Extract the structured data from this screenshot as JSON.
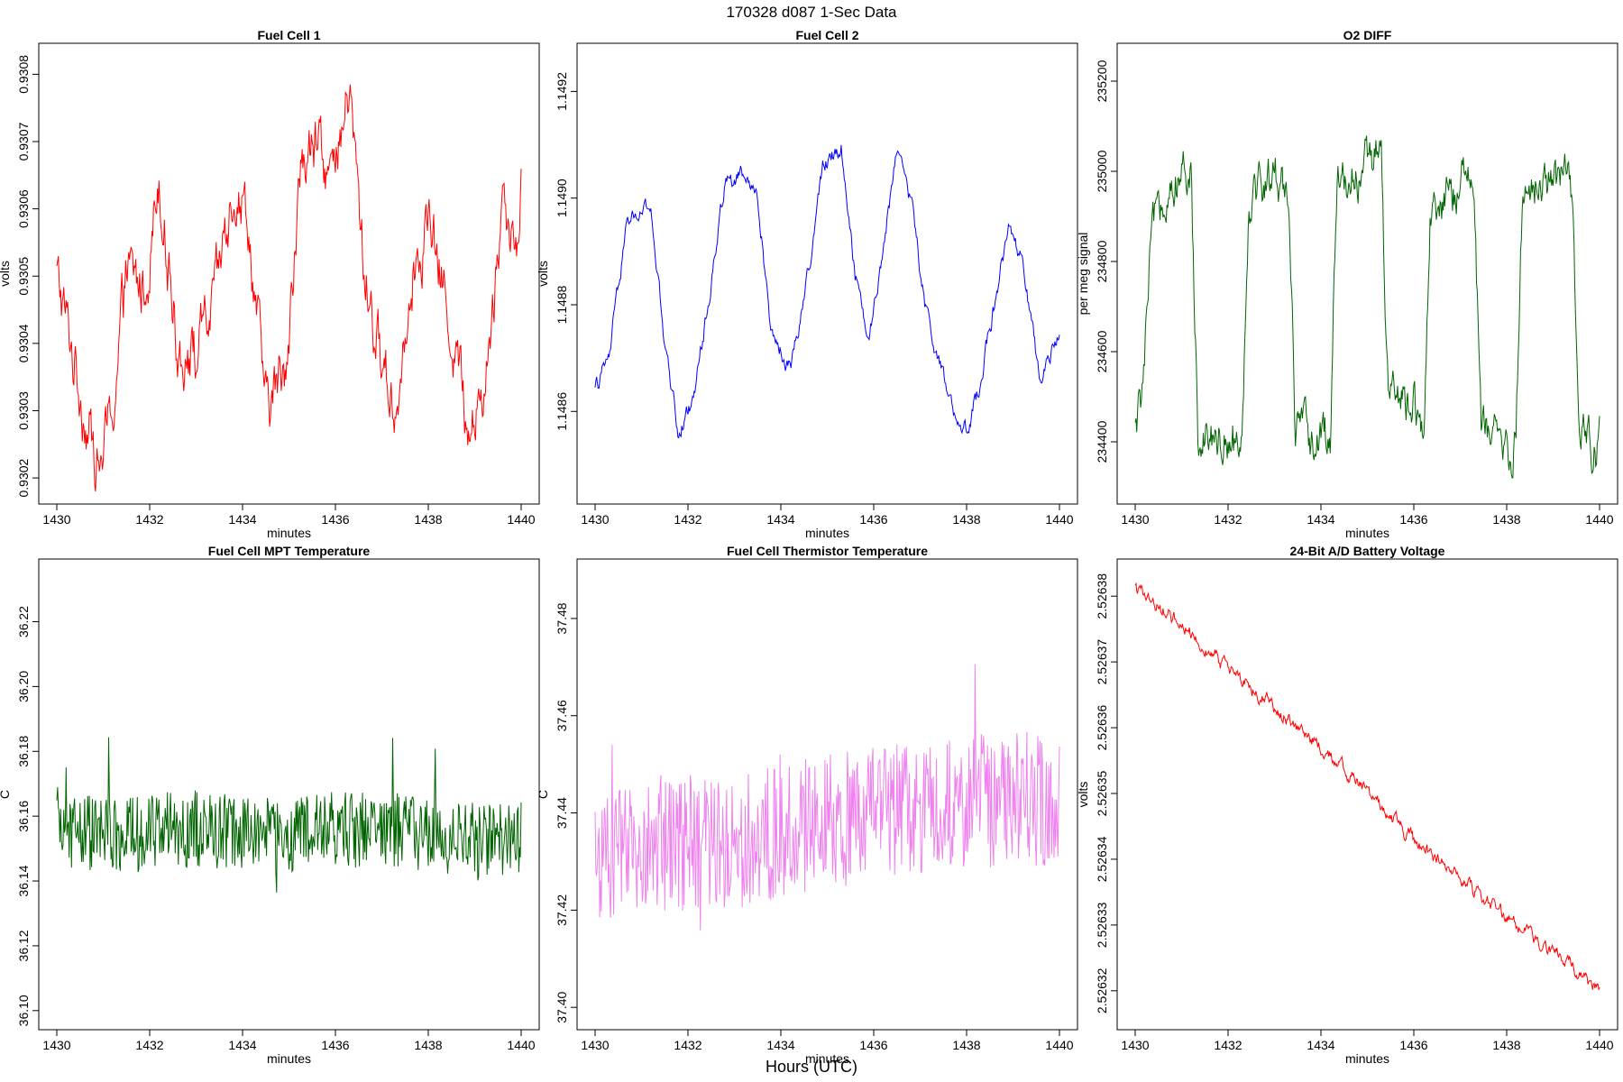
{
  "page": {
    "title": "170328   d087   1-Sec Data",
    "outer_xlabel": "Hours (UTC)"
  },
  "chart_data": [
    {
      "type": "line",
      "title": "Fuel Cell 1",
      "xlabel": "minutes",
      "ylabel": "volts",
      "color": "#ff0000",
      "xlim": [
        1430,
        1440
      ],
      "ylim": [
        0.93018,
        0.93083
      ],
      "xticks": [
        1430,
        1432,
        1434,
        1436,
        1438,
        1440
      ],
      "yticks": [
        0.9302,
        0.9303,
        0.9304,
        0.9305,
        0.9306,
        0.9307,
        0.9308
      ],
      "ytick_labels": [
        "0.9302",
        "0.9303",
        "0.9304",
        "0.9305",
        "0.9306",
        "0.9307",
        "0.9308"
      ],
      "series": [
        {
          "x": [
            1430,
            1430.3,
            1430.6,
            1430.9,
            1431.2,
            1431.5,
            1431.9,
            1432.2,
            1432.6,
            1433.0,
            1433.4,
            1433.8,
            1434.1,
            1434.5,
            1434.9,
            1435.3,
            1435.7,
            1436.0,
            1436.3,
            1436.6,
            1436.9,
            1437.3,
            1437.6,
            1438.0,
            1438.4,
            1438.8,
            1439.0,
            1439.3,
            1439.6,
            1439.9,
            1440
          ],
          "y": [
            0.9305,
            0.9304,
            0.9303,
            0.93021,
            0.9303,
            0.9305,
            0.93048,
            0.93066,
            0.9304,
            0.93038,
            0.93046,
            0.93064,
            0.9306,
            0.9303,
            0.93036,
            0.93068,
            0.93068,
            0.93064,
            0.93078,
            0.93052,
            0.9304,
            0.9303,
            0.9305,
            0.93058,
            0.93046,
            0.9303,
            0.93028,
            0.93038,
            0.93062,
            0.93054,
            0.93068
          ]
        }
      ]
    },
    {
      "type": "line",
      "title": "Fuel Cell 2",
      "xlabel": "minutes",
      "ylabel": "volts",
      "color": "#0000ff",
      "xlim": [
        1430,
        1440
      ],
      "ylim": [
        1.14845,
        1.14927
      ],
      "xticks": [
        1430,
        1432,
        1434,
        1436,
        1438,
        1440
      ],
      "yticks": [
        1.1486,
        1.1488,
        1.149,
        1.1492
      ],
      "ytick_labels": [
        "1.1486",
        "1.1488",
        "1.1490",
        "1.1492"
      ],
      "series": [
        {
          "x": [
            1430,
            1430.3,
            1430.7,
            1431.2,
            1431.5,
            1431.8,
            1432.1,
            1432.5,
            1432.8,
            1433.2,
            1433.5,
            1433.8,
            1434.2,
            1434.6,
            1434.9,
            1435.3,
            1435.6,
            1435.9,
            1436.2,
            1436.5,
            1436.8,
            1437.1,
            1437.5,
            1437.9,
            1438.2,
            1438.6,
            1438.9,
            1439.2,
            1439.6,
            1440
          ],
          "y": [
            1.14864,
            1.1487,
            1.14896,
            1.14898,
            1.14872,
            1.14856,
            1.14862,
            1.14884,
            1.14904,
            1.14904,
            1.149,
            1.14875,
            1.14868,
            1.14886,
            1.14906,
            1.1491,
            1.14886,
            1.14874,
            1.1489,
            1.1491,
            1.149,
            1.1488,
            1.14866,
            1.14854,
            1.14862,
            1.1488,
            1.14894,
            1.14888,
            1.14864,
            1.14876
          ]
        }
      ]
    },
    {
      "type": "line",
      "title": "O2 DIFF",
      "xlabel": "minutes",
      "ylabel": "per meg signal",
      "color": "#006400",
      "xlim": [
        1430,
        1440
      ],
      "ylim": [
        234290,
        235260
      ],
      "xticks": [
        1430,
        1432,
        1434,
        1436,
        1438,
        1440
      ],
      "yticks": [
        234400,
        234600,
        234800,
        235000,
        235200
      ],
      "ytick_labels": [
        "234400",
        "234600",
        "234800",
        "235000",
        "235200"
      ],
      "series": [
        {
          "x": [
            1430,
            1430.15,
            1430.35,
            1430.7,
            1431.2,
            1431.35,
            1431.9,
            1432.3,
            1432.45,
            1433.0,
            1433.3,
            1433.45,
            1434.0,
            1434.2,
            1434.35,
            1435.0,
            1435.3,
            1435.45,
            1436.0,
            1436.2,
            1436.35,
            1437.0,
            1437.3,
            1437.45,
            1438.0,
            1438.2,
            1438.35,
            1439.0,
            1439.4,
            1439.55,
            1440
          ],
          "y": [
            234420,
            234500,
            234850,
            234980,
            234980,
            234440,
            234410,
            234420,
            234950,
            234990,
            234970,
            234430,
            234390,
            234420,
            234980,
            235010,
            235040,
            234480,
            234500,
            234400,
            234860,
            234990,
            234970,
            234420,
            234390,
            234400,
            234960,
            234990,
            234960,
            234420,
            234390
          ]
        }
      ]
    },
    {
      "type": "line",
      "title": "Fuel Cell MPT Temperature",
      "xlabel": "minutes",
      "ylabel": "C",
      "color": "#006400",
      "xlim": [
        1430,
        1440
      ],
      "ylim": [
        36.098,
        36.236
      ],
      "xticks": [
        1430,
        1432,
        1434,
        1436,
        1438,
        1440
      ],
      "yticks": [
        36.1,
        36.12,
        36.14,
        36.16,
        36.18,
        36.2,
        36.22
      ],
      "ytick_labels": [
        "36.10",
        "36.12",
        "36.14",
        "36.16",
        "36.18",
        "36.20",
        "36.22"
      ],
      "series": [
        {
          "x": [
            1430,
            1431,
            1432,
            1433,
            1434,
            1435,
            1436,
            1437,
            1438,
            1439,
            1440
          ],
          "y": [
            36.157,
            36.154,
            36.155,
            36.156,
            36.155,
            36.154,
            36.156,
            36.156,
            36.155,
            36.152,
            36.153
          ]
        }
      ]
    },
    {
      "type": "line",
      "title": "Fuel Cell Thermistor Temperature",
      "xlabel": "minutes",
      "ylabel": "C",
      "color": "#ee82ee",
      "xlim": [
        1430,
        1440
      ],
      "ylim": [
        37.398,
        37.49
      ],
      "xticks": [
        1430,
        1432,
        1434,
        1436,
        1438,
        1440
      ],
      "yticks": [
        37.4,
        37.42,
        37.44,
        37.46,
        37.48
      ],
      "ytick_labels": [
        "37.40",
        "37.42",
        "37.44",
        "37.46",
        "37.48"
      ],
      "series": [
        {
          "x": [
            1430,
            1431,
            1432,
            1433,
            1434,
            1435,
            1436,
            1437,
            1438,
            1439,
            1440
          ],
          "y": [
            37.43,
            37.432,
            37.434,
            37.434,
            37.436,
            37.438,
            37.44,
            37.441,
            37.442,
            37.443,
            37.443
          ]
        }
      ]
    },
    {
      "type": "line",
      "title": "24-Bit A/D Battery Voltage",
      "xlabel": "minutes",
      "ylabel": "volts",
      "color": "#ff0000",
      "xlim": [
        1430,
        1440
      ],
      "ylim": [
        2.526316,
        2.526384
      ],
      "xticks": [
        1430,
        1432,
        1434,
        1436,
        1438,
        1440
      ],
      "yticks": [
        2.52632,
        2.52633,
        2.52634,
        2.52635,
        2.52636,
        2.52637,
        2.52638
      ],
      "ytick_labels": [
        "2.52632",
        "2.52633",
        "2.52634",
        "2.52635",
        "2.52636",
        "2.52637",
        "2.52638"
      ],
      "series": [
        {
          "x": [
            1430,
            1431,
            1432,
            1433,
            1434,
            1435,
            1436,
            1437,
            1438,
            1439,
            1440
          ],
          "y": [
            2.526381,
            2.526376,
            2.526369,
            2.526363,
            2.526357,
            2.52635,
            2.526343,
            2.526337,
            2.526331,
            2.526326,
            2.52632
          ]
        }
      ]
    }
  ]
}
